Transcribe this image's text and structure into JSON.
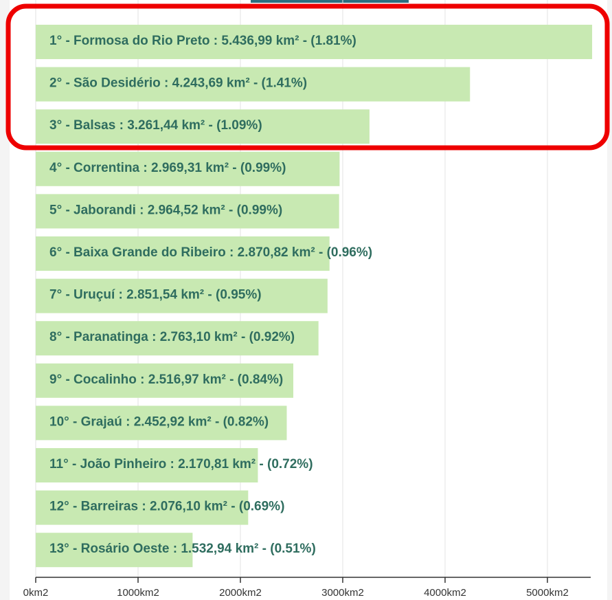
{
  "chart_data": {
    "type": "bar",
    "orientation": "horizontal",
    "color": "#c8e9b2",
    "values": [
      5436.99,
      4243.69,
      3261.44,
      2969.31,
      2964.52,
      2870.82,
      2851.54,
      2763.1,
      2516.97,
      2452.92,
      2170.81,
      2076.1,
      1532.94
    ],
    "value_labels": [
      "1° - Formosa do Rio Preto : 5.436,99 km² - (1.81%)",
      "2° - São Desidério : 4.243,69 km² - (1.41%)",
      "3° - Balsas : 3.261,44 km² - (1.09%)",
      "4° - Correntina : 2.969,31 km² - (0.99%)",
      "5° - Jaborandi : 2.964,52 km² - (0.99%)",
      "6° - Baixa Grande do Ribeiro : 2.870,82 km² - (0.96%)",
      "7° - Uruçuí : 2.851,54 km² - (0.95%)",
      "8° - Paranatinga : 2.763,10 km² - (0.92%)",
      "9° - Cocalinho : 2.516,97 km² - (0.84%)",
      "10° - Grajaú : 2.452,92 km² - (0.82%)",
      "11° - João Pinheiro : 2.170,81 km² - (0.72%)",
      "12° - Barreiras : 2.076,10 km² - (0.69%)",
      "13° - Rosário Oeste : 1.532,94 km² - (0.51%)"
    ],
    "xlim": [
      0,
      5450
    ],
    "xticks": [
      {
        "value": 0,
        "label": "0km2"
      },
      {
        "value": 1000,
        "label": "1000km2"
      },
      {
        "value": 2000,
        "label": "2000km2"
      },
      {
        "value": 3000,
        "label": "3000km2"
      },
      {
        "value": 4000,
        "label": "4000km2"
      },
      {
        "value": 5000,
        "label": "5000km2"
      }
    ],
    "grid": true
  }
}
